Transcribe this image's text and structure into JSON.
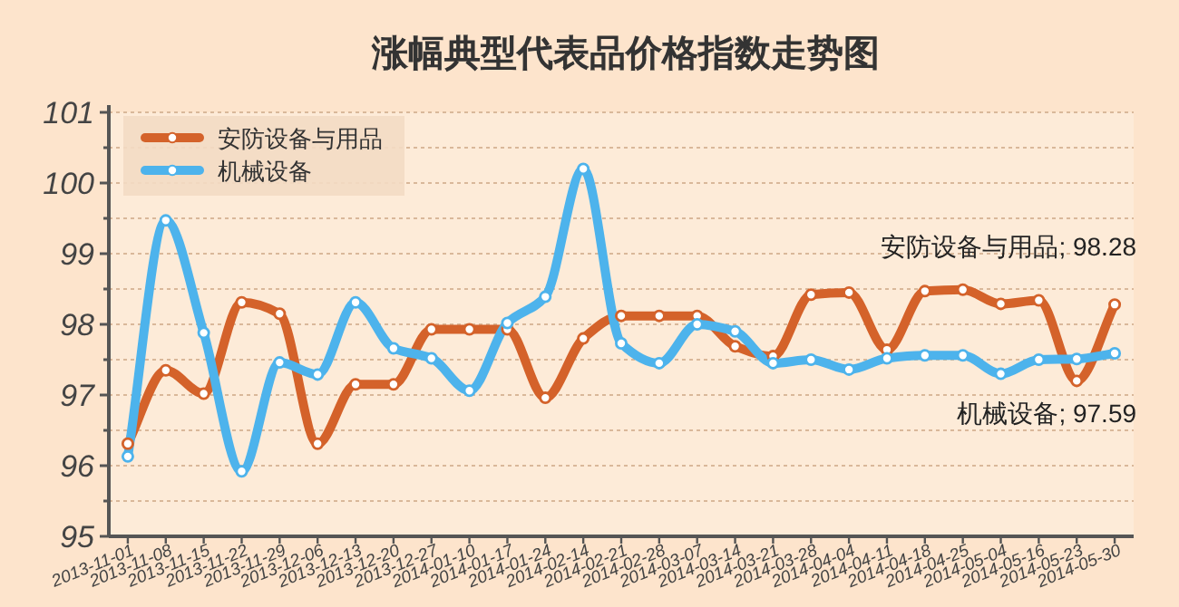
{
  "chart_data": {
    "type": "line",
    "title": "涨幅典型代表品价格指数走势图",
    "categories": [
      "2013-11-01",
      "2013-11-08",
      "2013-11-15",
      "2013-11-22",
      "2013-11-29",
      "2013-12-06",
      "2013-12-13",
      "2013-12-20",
      "2013-12-27",
      "2014-01-10",
      "2014-01-17",
      "2014-01-24",
      "2014-02-14",
      "2014-02-21",
      "2014-02-28",
      "2014-03-07",
      "2014-03-14",
      "2014-03-21",
      "2014-03-28",
      "2014-04-04",
      "2014-04-11",
      "2014-04-18",
      "2014-04-25",
      "2014-05-04",
      "2014-05-16",
      "2014-05-23",
      "2014-05-30"
    ],
    "series": [
      {
        "name": "安防设备与用品",
        "color": "#d4622a",
        "values": [
          96.31,
          97.35,
          97.02,
          98.31,
          98.15,
          96.31,
          97.15,
          97.15,
          97.93,
          97.93,
          97.93,
          96.96,
          97.8,
          98.12,
          98.12,
          98.12,
          97.69,
          97.55,
          98.42,
          98.45,
          97.64,
          98.47,
          98.49,
          98.29,
          98.34,
          97.2,
          98.28
        ]
      },
      {
        "name": "机械设备",
        "color": "#4db3ec",
        "values": [
          96.13,
          99.47,
          97.88,
          95.92,
          97.46,
          97.29,
          98.31,
          97.66,
          97.52,
          97.06,
          98.02,
          98.39,
          100.2,
          97.73,
          97.45,
          98.0,
          97.9,
          97.45,
          97.5,
          97.36,
          97.52,
          97.56,
          97.56,
          97.3,
          97.5,
          97.51,
          97.59
        ]
      }
    ],
    "ylim": [
      95,
      101
    ],
    "yticks": [
      95,
      {
        "value": 95.5,
        "label": null
      },
      96,
      {
        "value": 96.5,
        "label": null
      },
      97,
      {
        "value": 97.5,
        "label": null
      },
      98,
      {
        "value": 98.5,
        "label": null
      },
      99,
      {
        "value": 99.5,
        "label": null
      },
      100,
      {
        "value": 100.5,
        "label": null
      },
      101
    ],
    "grid": "y",
    "legend": "top left",
    "marker": "circle",
    "line_style": "solid",
    "annotations": [
      {
        "text": "安防设备与用品; 98.28",
        "x": "2014-05-30",
        "y": 98.28
      },
      {
        "text": "机械设备; 97.59",
        "x": "2014-05-30",
        "y": 97.59
      }
    ]
  }
}
